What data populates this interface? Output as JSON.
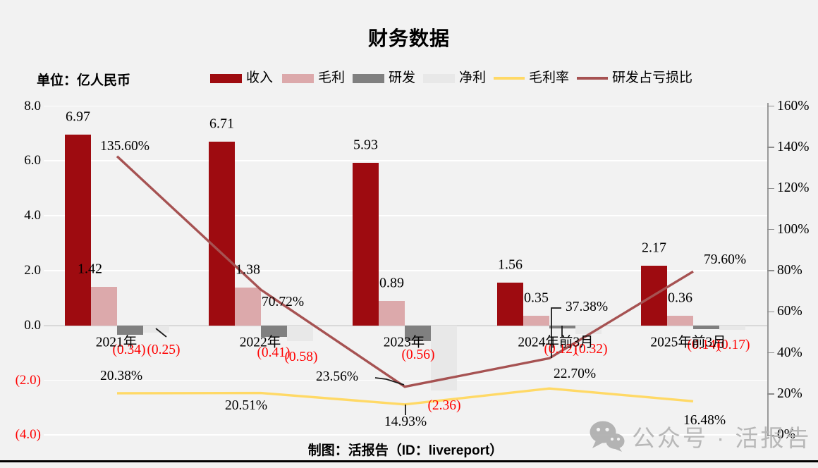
{
  "title": "财务数据",
  "unit_label": "单位：亿人民币",
  "legend": {
    "items": [
      {
        "key": "revenue",
        "label": "收入",
        "type": "bar",
        "color": "#9E0B10"
      },
      {
        "key": "gross_profit",
        "label": "毛利",
        "type": "bar",
        "color": "#DCA9AB"
      },
      {
        "key": "rnd",
        "label": "研发",
        "type": "bar",
        "color": "#808080"
      },
      {
        "key": "net_profit",
        "label": "净利",
        "type": "bar",
        "color": "#E8E8E8"
      },
      {
        "key": "gross_margin",
        "label": "毛利率",
        "type": "line",
        "color": "#FFD966"
      },
      {
        "key": "rnd_loss_ratio",
        "label": "研发占亏损比",
        "type": "line",
        "color": "#A65252"
      }
    ]
  },
  "chart_data": {
    "type": "combo-bar-line",
    "categories": [
      "2021年",
      "2022年",
      "2023年",
      "2024年前3月",
      "2025年前3月"
    ],
    "bar_series": [
      {
        "name": "收入",
        "key": "revenue",
        "color": "#9E0B10",
        "values": [
          6.97,
          6.71,
          5.93,
          1.56,
          2.17
        ]
      },
      {
        "name": "毛利",
        "key": "gross_profit",
        "color": "#DCA9AB",
        "values": [
          1.42,
          1.38,
          0.89,
          0.35,
          0.36
        ]
      },
      {
        "name": "研发",
        "key": "rnd",
        "color": "#808080",
        "values": [
          -0.34,
          -0.41,
          -0.56,
          -0.12,
          -0.14
        ]
      },
      {
        "name": "净利",
        "key": "net_profit",
        "color": "#E8E8E8",
        "values": [
          -0.25,
          -0.58,
          -2.36,
          -0.32,
          -0.17
        ]
      }
    ],
    "line_series": [
      {
        "name": "毛利率",
        "key": "gross_margin",
        "color": "#FFD966",
        "unit": "%",
        "values": [
          20.38,
          20.51,
          14.93,
          22.7,
          16.48
        ]
      },
      {
        "name": "研发占亏损比",
        "key": "rnd_loss_ratio",
        "color": "#A65252",
        "unit": "%",
        "values": [
          135.6,
          70.72,
          23.56,
          37.38,
          79.6
        ]
      }
    ],
    "left_axis": {
      "labels": [
        "8.0",
        "6.0",
        "4.0",
        "2.0",
        "0.0",
        "(2.0)",
        "(4.0)"
      ],
      "values": [
        8,
        6,
        4,
        2,
        0,
        -2,
        -4
      ]
    },
    "right_axis": {
      "labels": [
        "160%",
        "140%",
        "120%",
        "100%",
        "80%",
        "60%",
        "40%",
        "20%",
        "0%"
      ],
      "values": [
        160,
        140,
        120,
        100,
        80,
        60,
        40,
        20,
        0
      ]
    },
    "left_ylim": [
      -4,
      8
    ],
    "right_ylim": [
      0,
      160
    ],
    "grid": true,
    "negative_label_color": "#FF0000"
  },
  "footer": {
    "caption": "制图：活报告（ID：livereport）"
  },
  "watermark": {
    "icon": "wechat-icon",
    "text": "公众号 · 活报告"
  }
}
